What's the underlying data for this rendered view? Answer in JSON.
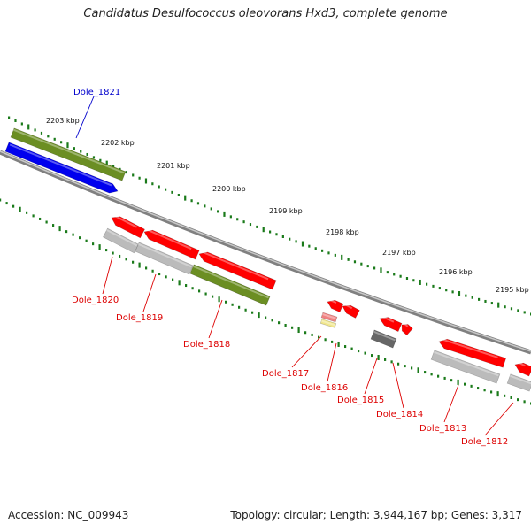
{
  "title": "Candidatus Desulfococcus oleovorans Hxd3, complete genome",
  "footer": {
    "accession": "Accession: NC_009943",
    "summary": "Topology: circular; Length: 3,944,167 bp; Genes: 3,317"
  },
  "colors": {
    "red": "#ff0000",
    "gray": "#bbbbbb",
    "olive": "#6b8e23",
    "blue": "#0000ee",
    "darkgray": "#666666",
    "pink": "#f08080",
    "yellow": "#f0e68c",
    "tick": "#1a7a1a",
    "backbone": "#808080",
    "label_red": "#dd0000",
    "label_blue": "#0000cc"
  },
  "kbp_labels": [
    "2203 kbp",
    "2202 kbp",
    "2201 kbp",
    "2200 kbp",
    "2199 kbp",
    "2198 kbp",
    "2197 kbp",
    "2196 kbp",
    "2195 kbp"
  ],
  "gene_labels": [
    {
      "text": "Dole_1821",
      "color": "blue"
    },
    {
      "text": "Dole_1820",
      "color": "red"
    },
    {
      "text": "Dole_1819",
      "color": "red"
    },
    {
      "text": "Dole_1818",
      "color": "red"
    },
    {
      "text": "Dole_1817",
      "color": "red"
    },
    {
      "text": "Dole_1816",
      "color": "red"
    },
    {
      "text": "Dole_1815",
      "color": "red"
    },
    {
      "text": "Dole_1814",
      "color": "red"
    },
    {
      "text": "Dole_1813",
      "color": "red"
    },
    {
      "text": "Dole_1812",
      "color": "red"
    }
  ]
}
